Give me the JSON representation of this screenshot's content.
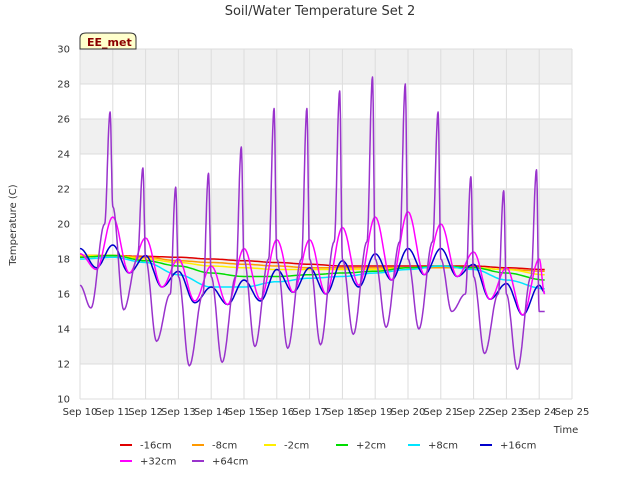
{
  "chart_data": {
    "type": "line",
    "title": "Soil/Water Temperature Set 2",
    "xlabel": "Time",
    "ylabel": "Temperature (C)",
    "badge": "EE_met",
    "ylim": [
      10,
      30
    ],
    "xlim": [
      "2023-09-10",
      "2023-09-25"
    ],
    "yticks": [
      10,
      12,
      14,
      16,
      18,
      20,
      22,
      24,
      26,
      28,
      30
    ],
    "xtick_labels": [
      "Sep 10",
      "Sep 11",
      "Sep 12",
      "Sep 13",
      "Sep 14",
      "Sep 15",
      "Sep 16",
      "Sep 17",
      "Sep 18",
      "Sep 19",
      "Sep 20",
      "Sep 21",
      "Sep 22",
      "Sep 23",
      "Sep 24",
      "Sep 25"
    ],
    "grid": true,
    "legend_position": "bottom",
    "x_dates": [
      "Sep 10",
      "Sep 11",
      "Sep 12",
      "Sep 13",
      "Sep 14",
      "Sep 15",
      "Sep 16",
      "Sep 17",
      "Sep 18",
      "Sep 19",
      "Sep 20",
      "Sep 21",
      "Sep 22",
      "Sep 23",
      "Sep 24"
    ],
    "series": [
      {
        "name": "-16cm",
        "color": "#e00000",
        "width": 1.5,
        "x": [
          "Sep 10",
          "Sep 11",
          "Sep 12",
          "Sep 13",
          "Sep 14",
          "Sep 15",
          "Sep 16",
          "Sep 17",
          "Sep 18",
          "Sep 19",
          "Sep 20",
          "Sep 21",
          "Sep 22",
          "Sep 23",
          "Sep 24 04:00"
        ],
        "y": [
          18.2,
          18.2,
          18.15,
          18.1,
          18.0,
          17.9,
          17.8,
          17.7,
          17.6,
          17.6,
          17.6,
          17.6,
          17.6,
          17.5,
          17.4
        ]
      },
      {
        "name": "-8cm",
        "color": "#ff9900",
        "width": 1.5,
        "x": [
          "Sep 10",
          "Sep 11",
          "Sep 12",
          "Sep 13",
          "Sep 14",
          "Sep 15",
          "Sep 16",
          "Sep 17",
          "Sep 18",
          "Sep 19",
          "Sep 20",
          "Sep 21",
          "Sep 22",
          "Sep 23",
          "Sep 24 04:00"
        ],
        "y": [
          18.2,
          18.2,
          18.1,
          17.9,
          17.8,
          17.7,
          17.6,
          17.5,
          17.5,
          17.5,
          17.5,
          17.5,
          17.5,
          17.4,
          17.3
        ]
      },
      {
        "name": "-2cm",
        "color": "#ffee00",
        "width": 1.5,
        "x": [
          "Sep 10",
          "Sep 11",
          "Sep 12",
          "Sep 13",
          "Sep 14",
          "Sep 15",
          "Sep 16",
          "Sep 17",
          "Sep 18",
          "Sep 19",
          "Sep 20",
          "Sep 21",
          "Sep 22",
          "Sep 23",
          "Sep 24 04:00"
        ],
        "y": [
          18.2,
          18.2,
          18.0,
          17.8,
          17.6,
          17.5,
          17.4,
          17.4,
          17.4,
          17.4,
          17.5,
          17.6,
          17.5,
          17.4,
          17.1
        ]
      },
      {
        "name": "+2cm",
        "color": "#00dd00",
        "width": 1.5,
        "x": [
          "Sep 10",
          "Sep 11",
          "Sep 12",
          "Sep 13",
          "Sep 14",
          "Sep 15",
          "Sep 16",
          "Sep 17",
          "Sep 18",
          "Sep 19",
          "Sep 20",
          "Sep 21",
          "Sep 22",
          "Sep 23",
          "Sep 24 04:00"
        ],
        "y": [
          18.1,
          18.2,
          17.9,
          17.6,
          17.2,
          17.0,
          17.0,
          17.1,
          17.2,
          17.3,
          17.5,
          17.6,
          17.5,
          17.2,
          16.8
        ]
      },
      {
        "name": "+8cm",
        "color": "#00e5ff",
        "width": 1.5,
        "x": [
          "Sep 10",
          "Sep 11",
          "Sep 12",
          "Sep 13",
          "Sep 14",
          "Sep 15",
          "Sep 16",
          "Sep 17",
          "Sep 18",
          "Sep 19",
          "Sep 20",
          "Sep 21",
          "Sep 22",
          "Sep 23",
          "Sep 24 04:00"
        ],
        "y": [
          18.0,
          18.1,
          17.8,
          17.1,
          16.4,
          16.4,
          16.7,
          16.9,
          17.0,
          17.2,
          17.4,
          17.6,
          17.4,
          16.8,
          16.3
        ]
      },
      {
        "name": "+16cm",
        "color": "#0000cc",
        "width": 1.5,
        "x": [
          "Sep 10",
          "Sep 10 12:00",
          "Sep 11",
          "Sep 11 12:00",
          "Sep 12",
          "Sep 12 12:00",
          "Sep 13",
          "Sep 13 12:00",
          "Sep 14",
          "Sep 14 12:00",
          "Sep 15",
          "Sep 15 12:00",
          "Sep 16",
          "Sep 16 12:00",
          "Sep 17",
          "Sep 17 12:00",
          "Sep 18",
          "Sep 18 12:00",
          "Sep 19",
          "Sep 19 12:00",
          "Sep 20",
          "Sep 20 12:00",
          "Sep 21",
          "Sep 21 12:00",
          "Sep 22",
          "Sep 22 12:00",
          "Sep 23",
          "Sep 23 12:00",
          "Sep 24",
          "Sep 24 04:00"
        ],
        "y": [
          18.6,
          17.5,
          18.8,
          17.2,
          18.2,
          16.4,
          17.3,
          15.5,
          16.4,
          15.4,
          16.8,
          15.6,
          17.4,
          16.1,
          17.5,
          16.0,
          17.9,
          16.4,
          18.3,
          16.8,
          18.6,
          17.1,
          18.6,
          17.0,
          17.7,
          15.7,
          16.6,
          14.8,
          16.5,
          16.1
        ]
      },
      {
        "name": "+32cm",
        "color": "#ff00ff",
        "width": 1.5,
        "x": [
          "Sep 10",
          "Sep 10 12:00",
          "Sep 11",
          "Sep 11 12:00",
          "Sep 12",
          "Sep 12 12:00",
          "Sep 13",
          "Sep 13 12:00",
          "Sep 14",
          "Sep 14 12:00",
          "Sep 15",
          "Sep 15 12:00",
          "Sep 16",
          "Sep 16 12:00",
          "Sep 17",
          "Sep 17 12:00",
          "Sep 18",
          "Sep 18 12:00",
          "Sep 19",
          "Sep 19 12:00",
          "Sep 20",
          "Sep 20 12:00",
          "Sep 21",
          "Sep 21 12:00",
          "Sep 22",
          "Sep 22 12:00",
          "Sep 23",
          "Sep 23 12:00",
          "Sep 24",
          "Sep 24 04:00"
        ],
        "y": [
          18.3,
          17.4,
          20.4,
          17.2,
          19.2,
          16.4,
          18.0,
          15.6,
          17.6,
          15.4,
          18.6,
          15.7,
          19.1,
          16.1,
          19.1,
          16.0,
          19.8,
          16.5,
          20.4,
          16.8,
          20.7,
          17.1,
          20.0,
          17.0,
          18.4,
          15.7,
          17.5,
          14.8,
          18.0,
          16.0
        ]
      },
      {
        "name": "+64cm",
        "color": "#9933cc",
        "width": 1.5,
        "x": [
          "Sep 10",
          "Sep 10 08:00",
          "Sep 10 18:00",
          "Sep 10 22:00",
          "Sep 11",
          "Sep 11 08:00",
          "Sep 11 18:00",
          "Sep 11 22:00",
          "Sep 12",
          "Sep 12 08:00",
          "Sep 12 18:00",
          "Sep 12 22:00",
          "Sep 13",
          "Sep 13 08:00",
          "Sep 13 18:00",
          "Sep 13 22:00",
          "Sep 14",
          "Sep 14 08:00",
          "Sep 14 18:00",
          "Sep 14 22:00",
          "Sep 15",
          "Sep 15 08:00",
          "Sep 15 18:00",
          "Sep 15 22:00",
          "Sep 16",
          "Sep 16 08:00",
          "Sep 16 18:00",
          "Sep 16 22:00",
          "Sep 17",
          "Sep 17 08:00",
          "Sep 17 18:00",
          "Sep 17 22:00",
          "Sep 18",
          "Sep 18 08:00",
          "Sep 18 18:00",
          "Sep 18 22:00",
          "Sep 19",
          "Sep 19 08:00",
          "Sep 19 18:00",
          "Sep 19 22:00",
          "Sep 20",
          "Sep 20 08:00",
          "Sep 20 18:00",
          "Sep 20 22:00",
          "Sep 21",
          "Sep 21 08:00",
          "Sep 21 18:00",
          "Sep 21 22:00",
          "Sep 22",
          "Sep 22 08:00",
          "Sep 22 18:00",
          "Sep 22 22:00",
          "Sep 23",
          "Sep 23 08:00",
          "Sep 23 18:00",
          "Sep 23 22:00",
          "Sep 24",
          "Sep 24 04:00"
        ],
        "y": [
          16.5,
          15.2,
          20.0,
          26.4,
          21.0,
          15.1,
          18.0,
          23.2,
          18.0,
          13.3,
          16.0,
          22.1,
          17.0,
          11.9,
          16.0,
          22.9,
          17.0,
          12.1,
          17.0,
          24.4,
          18.0,
          13.0,
          18.0,
          26.6,
          18.0,
          12.9,
          18.0,
          26.6,
          18.0,
          13.1,
          19.0,
          27.6,
          18.0,
          13.7,
          19.0,
          28.4,
          18.0,
          14.1,
          19.0,
          28.0,
          18.0,
          14.0,
          19.0,
          26.4,
          18.0,
          15.0,
          16.0,
          22.7,
          17.0,
          12.6,
          16.0,
          21.9,
          16.0,
          11.7,
          17.0,
          23.1,
          15.0,
          15.0
        ]
      }
    ]
  }
}
